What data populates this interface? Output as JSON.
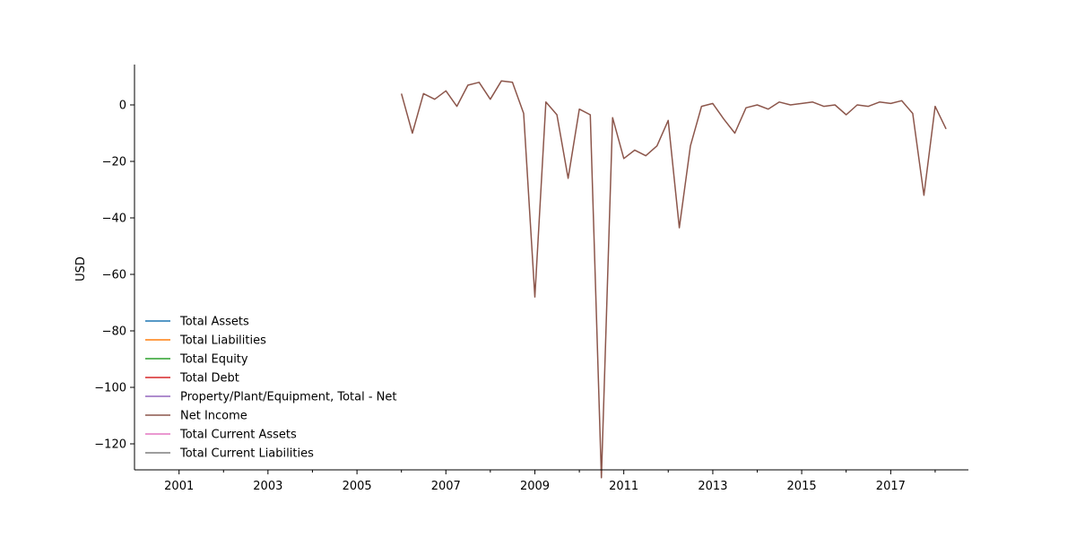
{
  "chart_data": {
    "type": "line",
    "title": "",
    "xlabel": "",
    "ylabel": "USD",
    "xlim": [
      "2000-01-01",
      "2018-10-01"
    ],
    "ylim": [
      -140,
      15
    ],
    "x_ticks": [
      "2001",
      "2003",
      "2005",
      "2007",
      "2009",
      "2011",
      "2013",
      "2015",
      "2017"
    ],
    "y_ticks": [
      "0",
      "−20",
      "−40",
      "−60",
      "−80",
      "−100",
      "−120"
    ],
    "y_tick_values": [
      0,
      -20,
      -40,
      -60,
      -80,
      -100,
      -120
    ],
    "grid": false,
    "legend_position": "lower-left",
    "series": [
      {
        "name": "Total Assets",
        "color": "#1f77b4",
        "x": [],
        "values": []
      },
      {
        "name": "Total Liabilities",
        "color": "#ff7f0e",
        "x": [],
        "values": []
      },
      {
        "name": "Total Equity",
        "color": "#2ca02c",
        "x": [],
        "values": []
      },
      {
        "name": "Total Debt",
        "color": "#d62728",
        "x": [],
        "values": []
      },
      {
        "name": "Property/Plant/Equipment, Total - Net",
        "color": "#9467bd",
        "x": [],
        "values": []
      },
      {
        "name": "Net Income",
        "color": "#8c564b",
        "x": [
          "2006-01-01",
          "2006-04-01",
          "2006-07-01",
          "2006-10-01",
          "2007-01-01",
          "2007-04-01",
          "2007-07-01",
          "2007-10-01",
          "2008-01-01",
          "2008-04-01",
          "2008-07-01",
          "2008-10-01",
          "2009-01-01",
          "2009-04-01",
          "2009-07-01",
          "2009-10-01",
          "2010-01-01",
          "2010-04-01",
          "2010-07-01",
          "2010-10-01",
          "2011-01-01",
          "2011-04-01",
          "2011-07-01",
          "2011-10-01",
          "2012-01-01",
          "2012-04-01",
          "2012-07-01",
          "2012-10-01",
          "2013-01-01",
          "2013-04-01",
          "2013-07-01",
          "2013-10-01",
          "2014-01-01",
          "2014-04-01",
          "2014-07-01",
          "2014-10-01",
          "2015-01-01",
          "2015-04-01",
          "2015-07-01",
          "2015-10-01",
          "2016-01-01",
          "2016-04-01",
          "2016-07-01",
          "2016-10-01",
          "2017-01-01",
          "2017-04-01",
          "2017-07-01",
          "2017-10-01",
          "2018-01-01",
          "2018-04-01"
        ],
        "values": [
          4,
          -10,
          4,
          2,
          5,
          -0.5,
          7,
          8,
          2,
          8.5,
          8,
          -3,
          -68,
          1,
          -3.5,
          -26,
          -1.5,
          -3.5,
          -132,
          -4.5,
          -19,
          -16,
          -18,
          -14.5,
          -5.5,
          -43.5,
          -14.5,
          -0.5,
          0.5,
          -5,
          -10,
          -1,
          0,
          -1.5,
          1,
          0,
          0.5,
          1,
          -0.5,
          0,
          -3.5,
          0,
          -0.5,
          1,
          0.5,
          1.5,
          -3,
          -32,
          -0.5,
          -8.5
        ]
      },
      {
        "name": "Total Current Assets",
        "color": "#e377c2",
        "x": [],
        "values": []
      },
      {
        "name": "Total Current Liabilities",
        "color": "#7f7f7f",
        "x": [],
        "values": []
      }
    ]
  }
}
